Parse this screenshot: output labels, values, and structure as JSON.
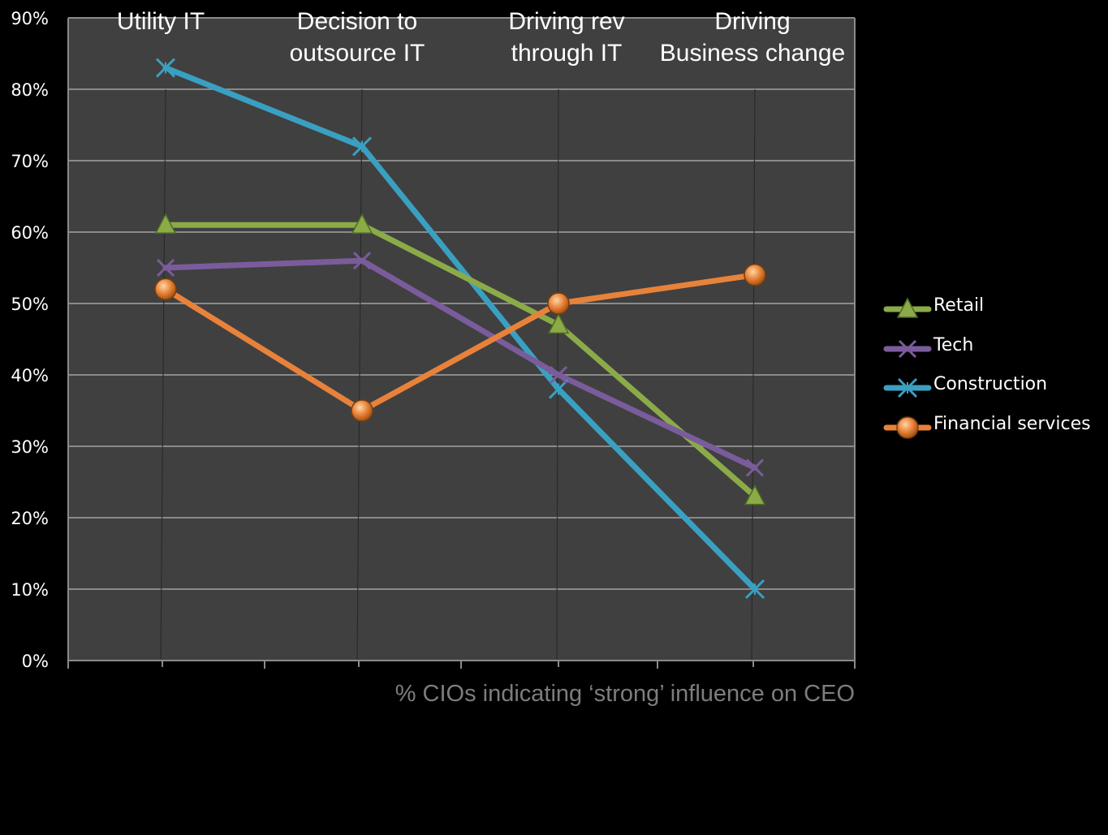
{
  "chart_data": {
    "type": "line",
    "title": "",
    "xlabel": "% CIOs indicating ‘strong’ influence on CEO",
    "ylabel": "",
    "categories": [
      [
        "Utility IT"
      ],
      [
        "Decision to",
        "outsource IT"
      ],
      [
        "Driving rev",
        "through IT"
      ],
      [
        "Driving",
        "Business change"
      ]
    ],
    "yticks": [
      "0%",
      "10%",
      "20%",
      "30%",
      "40%",
      "50%",
      "60%",
      "70%",
      "80%",
      "90%"
    ],
    "ylim": [
      0,
      90
    ],
    "grid": true,
    "legend_position": "right",
    "series": [
      {
        "name": "Retail",
        "values": [
          61,
          61,
          47,
          23
        ],
        "color": "#8bab48",
        "marker": "triangle-icon"
      },
      {
        "name": "Tech",
        "values": [
          55,
          56,
          40,
          27
        ],
        "color": "#7a5c9c",
        "marker": "x-icon"
      },
      {
        "name": "Construction",
        "values": [
          83,
          72,
          38,
          10
        ],
        "color": "#3aa0c2",
        "marker": "star-icon"
      },
      {
        "name": "Financial services",
        "values": [
          52,
          35,
          50,
          54
        ],
        "color": "#e8823a",
        "marker": "circle-icon"
      }
    ],
    "colors": {
      "background": "#000000",
      "plot_area": "#404040",
      "gridline": "#8a8a8a",
      "axis": "#8a8a8a",
      "tick_text": "#ffffff"
    }
  }
}
